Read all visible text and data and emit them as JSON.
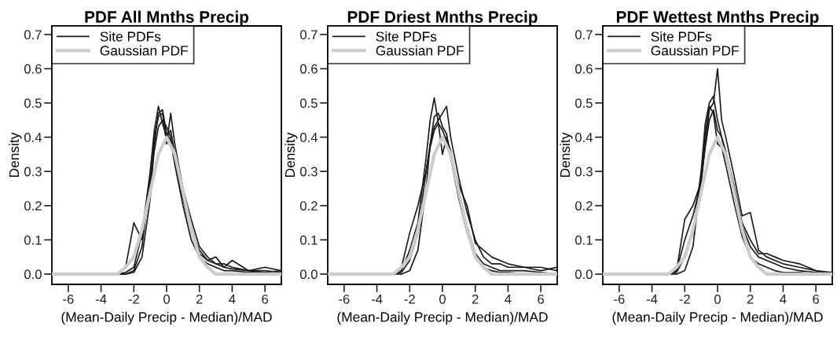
{
  "chart_data": [
    {
      "type": "line",
      "title": "PDF All Mnths Precip",
      "xlabel": "(Mean-Daily Precip - Median)/MAD",
      "ylabel": "Density",
      "xlim": [
        -7,
        7
      ],
      "ylim": [
        -0.03,
        0.725
      ],
      "xticks": [
        -6,
        -4,
        -2,
        0,
        2,
        4,
        6
      ],
      "yticks": [
        {
          "value": 0,
          "label": "0.0"
        },
        {
          "value": 0.1,
          "label": "0.1"
        },
        {
          "value": 0.2,
          "label": "0.2"
        },
        {
          "value": 0.3,
          "label": "0.3"
        },
        {
          "value": 0.4,
          "label": "0.4"
        },
        {
          "value": 0.5,
          "label": "0.5"
        },
        {
          "value": 0.6,
          "label": "0.6"
        },
        {
          "value": 0.7,
          "label": "0.7"
        }
      ],
      "legend": "top left",
      "grid": false,
      "series": [
        {
          "name": "Site PDFs",
          "color": "#1a1a1a",
          "x": [
            -7,
            -3,
            -2.5,
            -2,
            -1.5,
            -1,
            -0.75,
            -0.5,
            -0.25,
            0,
            0.25,
            0.5,
            1,
            1.5,
            2,
            2.5,
            3,
            3.5,
            4,
            5,
            6,
            7
          ],
          "values": [
            0,
            0,
            0.005,
            0.02,
            0.12,
            0.3,
            0.42,
            0.49,
            0.44,
            0.4,
            0.42,
            0.35,
            0.22,
            0.12,
            0.07,
            0.04,
            0.03,
            0.02,
            0.015,
            0.01,
            0.01,
            0.005
          ]
        },
        {
          "color": "#1a1a1a",
          "x": [
            -7,
            -3,
            -2.5,
            -2,
            -1.5,
            -1,
            -0.75,
            -0.5,
            -0.25,
            0,
            0.25,
            0.5,
            1,
            1.5,
            2,
            2.5,
            3,
            3.5,
            4,
            5,
            6,
            7
          ],
          "values": [
            0,
            0,
            0,
            0.01,
            0.08,
            0.28,
            0.4,
            0.46,
            0.47,
            0.38,
            0.47,
            0.38,
            0.25,
            0.16,
            0.08,
            0.05,
            0.03,
            0.03,
            0.02,
            0.01,
            0.005,
            0.01
          ]
        },
        {
          "color": "#1a1a1a",
          "x": [
            -7,
            -3,
            -2.5,
            -2,
            -1.5,
            -1,
            -0.75,
            -0.5,
            -0.25,
            0,
            0.25,
            0.5,
            1,
            1.5,
            2,
            2.5,
            3,
            3.5,
            4,
            5,
            6,
            7
          ],
          "values": [
            0,
            0,
            0.02,
            0.15,
            0.1,
            0.26,
            0.36,
            0.43,
            0.45,
            0.43,
            0.4,
            0.33,
            0.22,
            0.14,
            0.06,
            0.04,
            0.05,
            0.02,
            0.04,
            0.01,
            0.02,
            0.01
          ]
        },
        {
          "color": "#1a1a1a",
          "x": [
            -7,
            -3,
            -2.5,
            -2,
            -1.5,
            -1,
            -0.75,
            -0.5,
            -0.25,
            0,
            0.25,
            0.5,
            1,
            1.5,
            2,
            2.5,
            3,
            3.5,
            4,
            5,
            6,
            7
          ],
          "values": [
            0,
            0,
            0,
            0.005,
            0.05,
            0.22,
            0.38,
            0.47,
            0.48,
            0.41,
            0.39,
            0.32,
            0.2,
            0.1,
            0.05,
            0.03,
            0.02,
            0.01,
            0.01,
            0.005,
            0.005,
            0
          ]
        },
        {
          "name": "Gaussian PDF",
          "color": "#cccccc",
          "x": [
            -7,
            -6,
            -5,
            -4,
            -3.5,
            -3,
            -2.5,
            -2,
            -1.5,
            -1,
            -0.5,
            0,
            0.5,
            1,
            1.5,
            2,
            2.5,
            3,
            3.5,
            4,
            5,
            6,
            7
          ],
          "values": [
            0,
            0,
            0,
            0,
            0,
            0,
            0.02,
            0.05,
            0.13,
            0.24,
            0.35,
            0.4,
            0.35,
            0.24,
            0.13,
            0.05,
            0.02,
            0,
            0,
            0,
            0,
            0,
            0
          ]
        }
      ]
    },
    {
      "type": "line",
      "title": "PDF Driest Mnths Precip",
      "xlabel": "(Mean-Daily Precip - Median)/MAD",
      "ylabel": "Density",
      "xlim": [
        -7,
        7
      ],
      "ylim": [
        -0.03,
        0.725
      ],
      "xticks": [
        -6,
        -4,
        -2,
        0,
        2,
        4,
        6
      ],
      "yticks": [
        {
          "value": 0,
          "label": "0.0"
        },
        {
          "value": 0.1,
          "label": "0.1"
        },
        {
          "value": 0.2,
          "label": "0.2"
        },
        {
          "value": 0.3,
          "label": "0.3"
        },
        {
          "value": 0.4,
          "label": "0.4"
        },
        {
          "value": 0.5,
          "label": "0.5"
        },
        {
          "value": 0.6,
          "label": "0.6"
        },
        {
          "value": 0.7,
          "label": "0.7"
        }
      ],
      "legend": "top left",
      "grid": false,
      "series": [
        {
          "name": "Site PDFs",
          "color": "#1a1a1a",
          "x": [
            -7,
            -3,
            -2.5,
            -2,
            -1.5,
            -1,
            -0.75,
            -0.5,
            -0.25,
            0,
            0.25,
            0.5,
            1,
            1.5,
            2,
            2.5,
            3,
            3.5,
            4,
            5,
            6,
            7
          ],
          "values": [
            0,
            0,
            0.01,
            0.07,
            0.15,
            0.34,
            0.45,
            0.515,
            0.44,
            0.35,
            0.4,
            0.36,
            0.24,
            0.14,
            0.06,
            0.03,
            0.02,
            0.01,
            0.01,
            0.01,
            0.005,
            0
          ]
        },
        {
          "color": "#1a1a1a",
          "x": [
            -7,
            -3,
            -2.5,
            -2,
            -1.5,
            -1,
            -0.75,
            -0.5,
            -0.25,
            0,
            0.25,
            0.5,
            1,
            1.5,
            2,
            2.5,
            3,
            3.5,
            4,
            5,
            6,
            7
          ],
          "values": [
            0,
            0,
            0.005,
            0.04,
            0.12,
            0.3,
            0.38,
            0.43,
            0.45,
            0.47,
            0.49,
            0.4,
            0.28,
            0.18,
            0.1,
            0.05,
            0.03,
            0.03,
            0.02,
            0.02,
            0.01,
            0.02
          ]
        },
        {
          "color": "#1a1a1a",
          "x": [
            -7,
            -3,
            -2.5,
            -2,
            -1.5,
            -1,
            -0.75,
            -0.5,
            -0.25,
            0,
            0.25,
            0.5,
            1,
            1.5,
            2,
            2.5,
            3,
            3.5,
            4,
            5,
            6,
            7
          ],
          "values": [
            0,
            0,
            0.02,
            0.12,
            0.2,
            0.3,
            0.37,
            0.42,
            0.44,
            0.42,
            0.39,
            0.34,
            0.26,
            0.2,
            0.09,
            0.07,
            0.05,
            0.04,
            0.03,
            0.02,
            0.02,
            0.01
          ]
        },
        {
          "color": "#1a1a1a",
          "x": [
            -7,
            -3,
            -2.5,
            -2,
            -1.5,
            -1,
            -0.75,
            -0.5,
            -0.25,
            0,
            0.25,
            0.5,
            1,
            1.5,
            2,
            2.5,
            3,
            3.5,
            4,
            5,
            6,
            7
          ],
          "values": [
            0,
            0,
            0,
            0.01,
            0.07,
            0.25,
            0.38,
            0.46,
            0.47,
            0.43,
            0.41,
            0.34,
            0.22,
            0.12,
            0.05,
            0.02,
            0.01,
            0.005,
            0.005,
            0,
            0,
            0
          ]
        },
        {
          "name": "Gaussian PDF",
          "color": "#cccccc",
          "x": [
            -7,
            -6,
            -5,
            -4,
            -3.5,
            -3,
            -2.5,
            -2,
            -1.5,
            -1,
            -0.5,
            0,
            0.5,
            1,
            1.5,
            2,
            2.5,
            3,
            3.5,
            4,
            5,
            6,
            7
          ],
          "values": [
            0,
            0,
            0,
            0,
            0,
            0,
            0.02,
            0.05,
            0.13,
            0.24,
            0.35,
            0.4,
            0.35,
            0.24,
            0.13,
            0.05,
            0.02,
            0,
            0,
            0,
            0,
            0,
            0
          ]
        }
      ]
    },
    {
      "type": "line",
      "title": "PDF Wettest Mnths Precip",
      "xlabel": "(Mean-Daily Precip - Median)/MAD",
      "ylabel": "Density",
      "xlim": [
        -7,
        7
      ],
      "ylim": [
        -0.03,
        0.725
      ],
      "xticks": [
        -6,
        -4,
        -2,
        0,
        2,
        4,
        6
      ],
      "yticks": [
        {
          "value": 0,
          "label": "0.0"
        },
        {
          "value": 0.1,
          "label": "0.1"
        },
        {
          "value": 0.2,
          "label": "0.2"
        },
        {
          "value": 0.3,
          "label": "0.3"
        },
        {
          "value": 0.4,
          "label": "0.4"
        },
        {
          "value": 0.5,
          "label": "0.5"
        },
        {
          "value": 0.6,
          "label": "0.6"
        },
        {
          "value": 0.7,
          "label": "0.7"
        }
      ],
      "legend": "top left",
      "grid": false,
      "series": [
        {
          "name": "Site PDFs",
          "color": "#1a1a1a",
          "x": [
            -7,
            -3,
            -2.5,
            -2,
            -1.5,
            -1,
            -0.75,
            -0.5,
            -0.25,
            0,
            0.25,
            0.5,
            1,
            1.5,
            2,
            2.5,
            3,
            3.5,
            4,
            5,
            6,
            7
          ],
          "values": [
            0,
            0,
            0.005,
            0.05,
            0.12,
            0.3,
            0.44,
            0.5,
            0.52,
            0.45,
            0.4,
            0.35,
            0.24,
            0.14,
            0.08,
            0.05,
            0.04,
            0.03,
            0.02,
            0.01,
            0.005,
            0
          ]
        },
        {
          "color": "#1a1a1a",
          "x": [
            -7,
            -3,
            -2.5,
            -2,
            -1.5,
            -1,
            -0.75,
            -0.5,
            -0.25,
            0,
            0.25,
            0.5,
            1,
            1.5,
            2,
            2.5,
            3,
            3.5,
            4,
            5,
            6,
            7
          ],
          "values": [
            0,
            0,
            0.01,
            0.1,
            0.17,
            0.27,
            0.38,
            0.48,
            0.5,
            0.6,
            0.45,
            0.4,
            0.29,
            0.17,
            0.18,
            0.07,
            0.05,
            0.04,
            0.03,
            0.02,
            0.01,
            0.005
          ]
        },
        {
          "color": "#1a1a1a",
          "x": [
            -7,
            -3,
            -2.5,
            -2,
            -1.5,
            -1,
            -0.75,
            -0.5,
            -0.25,
            0,
            0.25,
            0.5,
            1,
            1.5,
            2,
            2.5,
            3,
            3.5,
            4,
            5,
            6,
            7
          ],
          "values": [
            0,
            0,
            0.01,
            0.16,
            0.2,
            0.27,
            0.37,
            0.45,
            0.48,
            0.42,
            0.4,
            0.36,
            0.26,
            0.15,
            0.1,
            0.06,
            0.06,
            0.05,
            0.04,
            0.03,
            0.01,
            0
          ]
        },
        {
          "color": "#1a1a1a",
          "x": [
            -7,
            -3,
            -2.5,
            -2,
            -1.5,
            -1,
            -0.75,
            -0.5,
            -0.25,
            0,
            0.25,
            0.5,
            1,
            1.5,
            2,
            2.5,
            3,
            3.5,
            4,
            5,
            6,
            7
          ],
          "values": [
            0,
            0,
            0,
            0.01,
            0.08,
            0.28,
            0.41,
            0.49,
            0.47,
            0.38,
            0.37,
            0.32,
            0.21,
            0.11,
            0.05,
            0.03,
            0.02,
            0.01,
            0.005,
            0.005,
            0,
            0
          ]
        },
        {
          "name": "Gaussian PDF",
          "color": "#cccccc",
          "x": [
            -7,
            -6,
            -5,
            -4,
            -3.5,
            -3,
            -2.5,
            -2,
            -1.5,
            -1,
            -0.5,
            0,
            0.5,
            1,
            1.5,
            2,
            2.5,
            3,
            3.5,
            4,
            5,
            6,
            7
          ],
          "values": [
            0,
            0,
            0,
            0,
            0,
            0,
            0.02,
            0.05,
            0.13,
            0.24,
            0.35,
            0.4,
            0.35,
            0.24,
            0.13,
            0.05,
            0.02,
            0,
            0,
            0,
            0,
            0,
            0
          ]
        }
      ]
    }
  ]
}
